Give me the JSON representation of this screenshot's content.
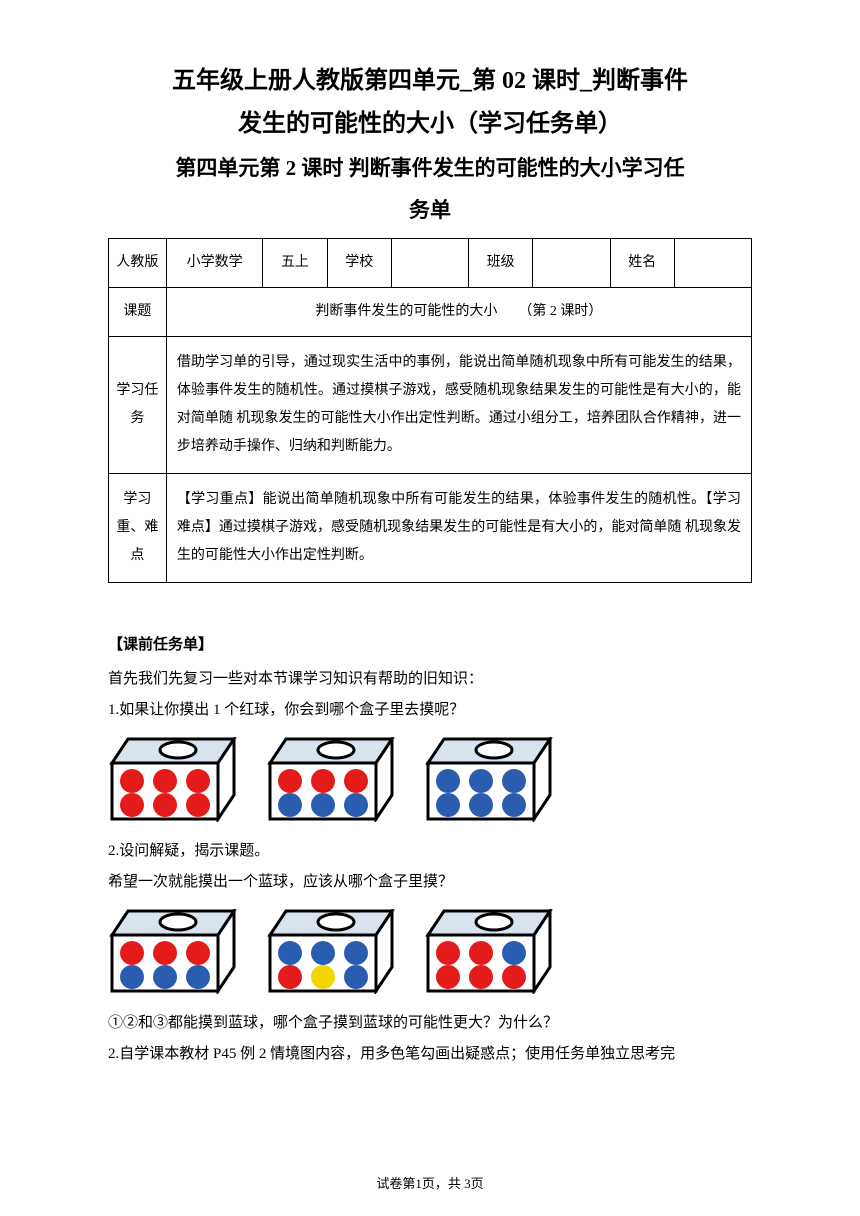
{
  "title_line1": "五年级上册人教版第四单元_第 02 课时_判断事件",
  "title_line2": "发生的可能性的大小（学习任务单）",
  "subtitle_line1": "第四单元第 2 课时 判断事件发生的可能性的大小学习任",
  "subtitle_line2": "务单",
  "table": {
    "row1": {
      "c1": "人教版",
      "c2": "小学数学",
      "c3": "五上",
      "c4": "学校",
      "c5": "",
      "c6": "班级",
      "c7": "",
      "c8": "姓名",
      "c9": ""
    },
    "row2": {
      "label": "课题",
      "content": "判断事件发生的可能性的大小　　（第 2 课时）"
    },
    "row3": {
      "label": "学习任务",
      "content": "借助学习单的引导，通过现实生活中的事例，能说出简单随机现象中所有可能发生的结果，体验事件发生的随机性。通过摸棋子游戏，感受随机现象结果发生的可能性是有大小的，能对简单随 机现象发生的可能性大小作出定性判断。通过小组分工，培养团队合作精神，进一步培养动手操作、归纳和判断能力。"
    },
    "row4": {
      "label": "学习重、难点",
      "content": "【学习重点】能说出简单随机现象中所有可能发生的结果，体验事件发生的随机性。【学习难点】通过摸棋子游戏，感受随机现象结果发生的可能性是有大小的，能对简单随 机现象发生的可能性大小作出定性判断。"
    }
  },
  "section_header": "【课前任务单】",
  "p1": "首先我们先复习一些对本节课学习知识有帮助的旧知识：",
  "p2": "1.如果让你摸出 1 个红球，你会到哪个盒子里去摸呢？",
  "p3": "2.设问解疑，揭示课题。",
  "p4": "希望一次就能摸出一个蓝球，应该从哪个盒子里摸？",
  "p5": "①②和③都能摸到蓝球，哪个盒子摸到蓝球的可能性更大？为什么？",
  "p6": "2.自学课本教材 P45 例 2 情境图内容，用多色笔勾画出疑惑点；使用任务单独立思考完",
  "footer": "试卷第1页，共 3页",
  "colors": {
    "red": "#e31b1b",
    "blue": "#2a5db0",
    "yellow": "#f5d500",
    "box_outline": "#000000",
    "box_top_fill": "#d8e3ee",
    "box_hole": "#ffffff"
  },
  "boxes_set1": [
    {
      "balls": [
        "red",
        "red",
        "red",
        "red",
        "red",
        "red"
      ]
    },
    {
      "balls": [
        "red",
        "red",
        "red",
        "blue",
        "blue",
        "blue"
      ]
    },
    {
      "balls": [
        "blue",
        "blue",
        "blue",
        "blue",
        "blue",
        "blue"
      ]
    }
  ],
  "boxes_set2": [
    {
      "balls": [
        "red",
        "red",
        "red",
        "blue",
        "blue",
        "blue"
      ]
    },
    {
      "balls": [
        "blue",
        "blue",
        "blue",
        "red",
        "yellow",
        "blue"
      ]
    },
    {
      "balls": [
        "red",
        "red",
        "blue",
        "red",
        "red",
        "red"
      ]
    }
  ]
}
